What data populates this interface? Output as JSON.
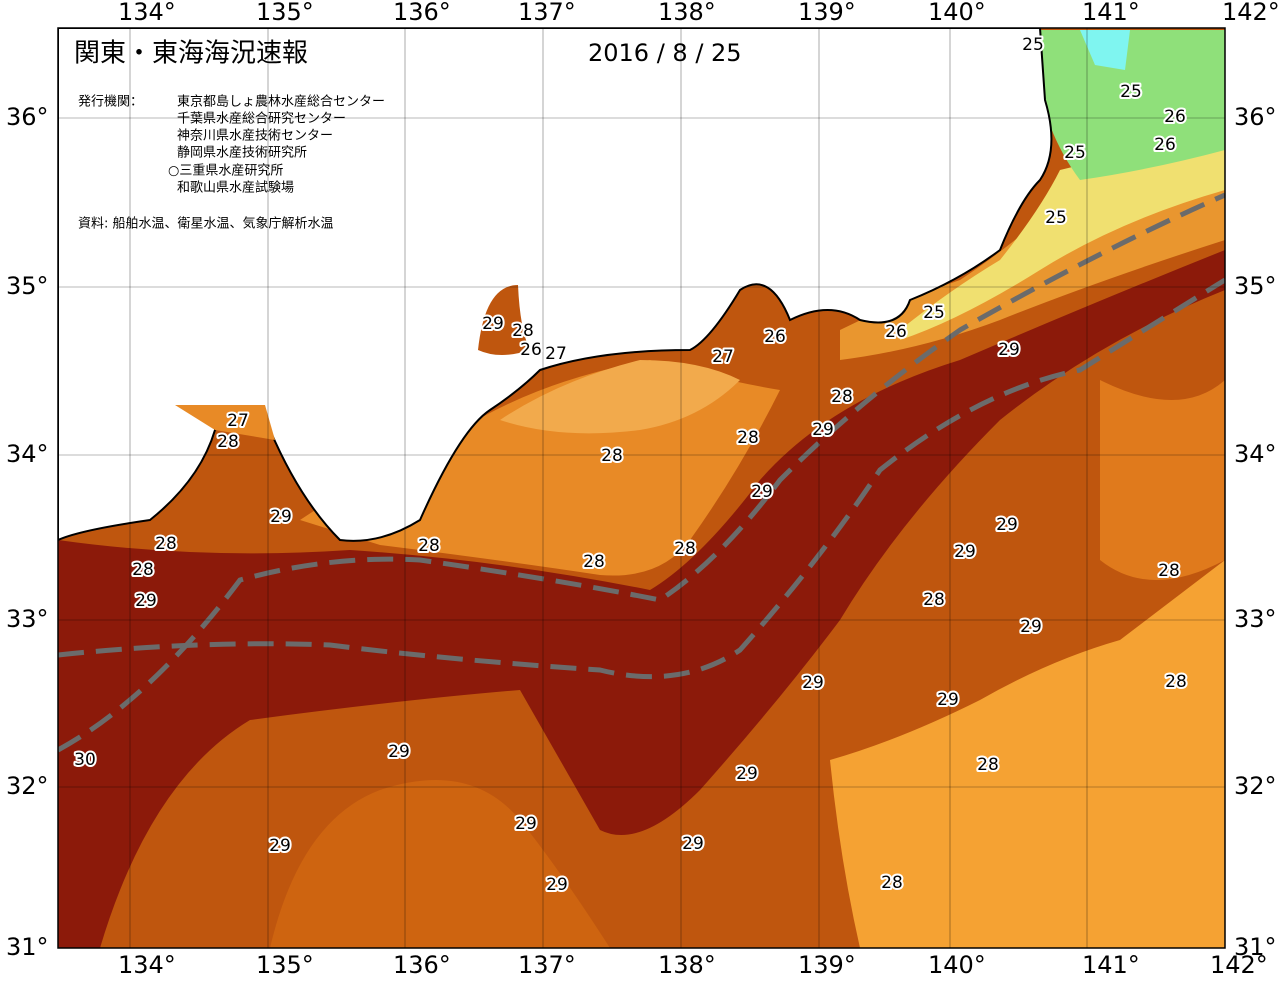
{
  "header": {
    "title": "関東・東海海況速報",
    "date": "2016 / 8 / 25",
    "issuer_label": "発行機関：",
    "issuers": [
      "東京都島しょ農林水産総合センター",
      "千葉県水産総合研究センター",
      "神奈川県水産技術センター",
      "静岡県水産技術研究所",
      "○三重県水産研究所",
      "和歌山県水産試験場"
    ],
    "source": "資料: 船舶水温、衛星水温、気象庁解析水温"
  },
  "axes": {
    "longitude_labels": [
      "134°",
      "135°",
      "136°",
      "137°",
      "138°",
      "139°",
      "140°",
      "141°",
      "142°"
    ],
    "latitude_labels": [
      "36°",
      "35°",
      "34°",
      "33°",
      "32°",
      "31°"
    ]
  },
  "contour_labels": [
    25,
    25,
    26,
    25,
    26,
    25,
    25,
    26,
    29,
    26,
    27,
    29,
    28,
    26,
    27,
    28,
    29,
    28,
    27,
    28,
    28,
    29,
    29,
    29,
    28,
    28,
    28,
    29,
    28,
    28,
    28,
    29,
    28,
    29,
    29,
    28,
    29,
    30,
    29,
    29,
    28,
    29,
    29,
    29,
    29,
    28
  ]
}
